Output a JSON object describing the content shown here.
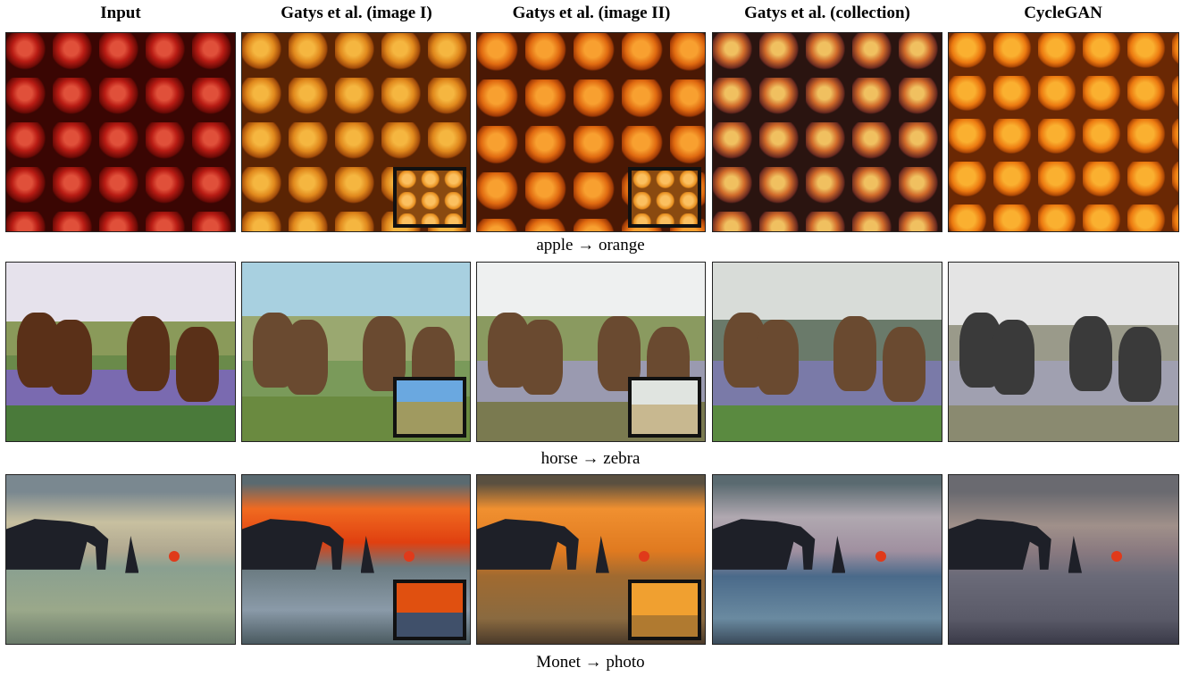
{
  "columns": [
    "Input",
    "Gatys et al. (image I)",
    "Gatys et al. (image II)",
    "Gatys et al. (collection)",
    "CycleGAN"
  ],
  "rows": [
    {
      "caption": "apple → orange"
    },
    {
      "caption": "horse  → zebra"
    },
    {
      "caption": "Monet → photo"
    }
  ]
}
